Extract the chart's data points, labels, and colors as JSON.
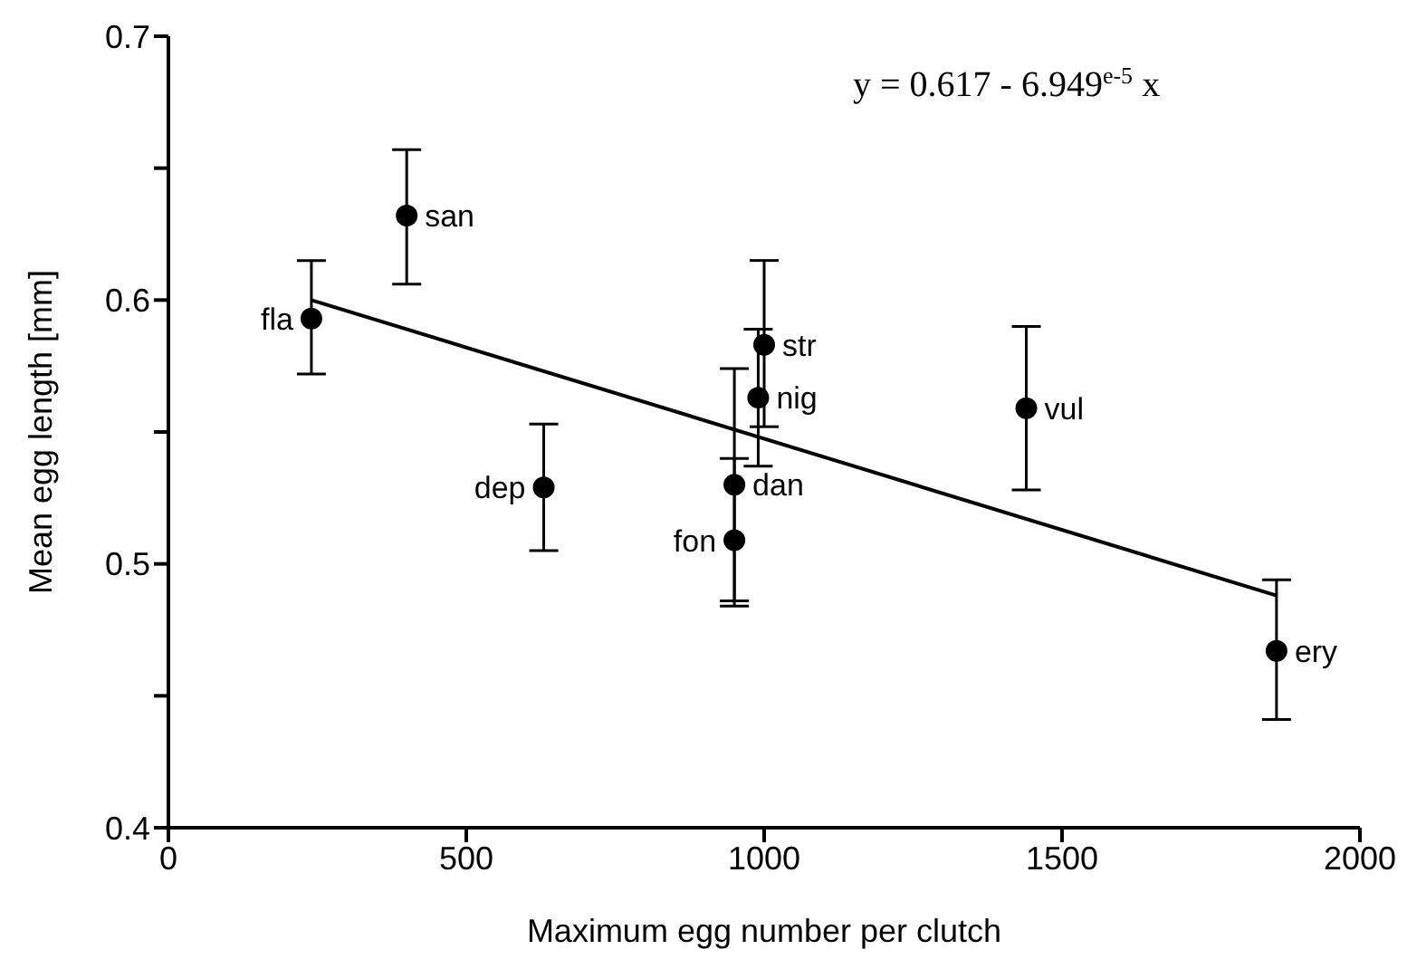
{
  "chart_data": {
    "type": "scatter",
    "xlabel": "Maximum egg number per clutch",
    "ylabel": "Mean egg length [mm]",
    "xlim": [
      0,
      2000
    ],
    "xticks": [
      0,
      500,
      1000,
      1500,
      2000
    ],
    "ylim": [
      0.4,
      0.7
    ],
    "yticks": [
      0.4,
      {
        "value": 0.45,
        "label": null
      },
      0.5,
      {
        "value": 0.55,
        "label": null
      },
      0.6,
      {
        "value": 0.65,
        "label": null
      },
      0.7
    ],
    "grid": false,
    "legend": false,
    "marker": "circle",
    "series": [
      {
        "type": "scatter",
        "color": "#000000",
        "x": [
          240,
          400,
          630,
          950,
          950,
          1000,
          990,
          1440,
          1860
        ],
        "values": [
          0.593,
          0.632,
          0.529,
          0.53,
          0.509,
          0.583,
          0.563,
          0.559,
          0.467
        ],
        "errors": [
          [
            0.572,
            0.615
          ],
          [
            0.606,
            0.657
          ],
          [
            0.505,
            0.553
          ],
          [
            0.486,
            0.574
          ],
          [
            0.484,
            0.54
          ],
          [
            0.552,
            0.615
          ],
          [
            0.537,
            0.589
          ],
          [
            0.528,
            0.59
          ],
          [
            0.441,
            0.494
          ]
        ]
      },
      {
        "type": "line",
        "color": "#000000",
        "x": [
          240,
          1860
        ],
        "values": [
          0.6,
          0.488
        ],
        "marker": "none",
        "line_style": "solid"
      }
    ],
    "annotations": [
      {
        "text": "fla",
        "x": 240,
        "y": 0.593
      },
      {
        "text": "san",
        "x": 400,
        "y": 0.632
      },
      {
        "text": "dep",
        "x": 630,
        "y": 0.529
      },
      {
        "text": "dan",
        "x": 950,
        "y": 0.53
      },
      {
        "text": "fon",
        "x": 950,
        "y": 0.509
      },
      {
        "text": "str",
        "x": 1000,
        "y": 0.583
      },
      {
        "text": "nig",
        "x": 990,
        "y": 0.563
      },
      {
        "text": "vul",
        "x": 1440,
        "y": 0.559
      },
      {
        "text": "ery",
        "x": 1860,
        "y": 0.467
      },
      "y = 0.617 - 6.949$^{e-5}$ x"
    ]
  }
}
